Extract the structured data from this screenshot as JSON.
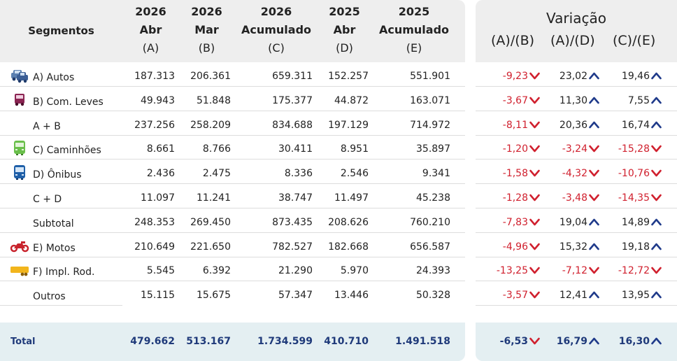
{
  "header": {
    "segmentos": "Segmentos",
    "cols": [
      {
        "l1": "2026",
        "l2": "Abr",
        "l3": "(A)"
      },
      {
        "l1": "2026",
        "l2": "Mar",
        "l3": "(B)"
      },
      {
        "l1": "2026",
        "l2": "Acumulado",
        "l3": "(C)"
      },
      {
        "l1": "2025",
        "l2": "Abr",
        "l3": "(D)"
      },
      {
        "l1": "2025",
        "l2": "Acumulado",
        "l3": "(E)"
      }
    ]
  },
  "variation": {
    "title": "Variação",
    "cols": [
      "(A)/(B)",
      "(A)/(D)",
      "(C)/(E)"
    ]
  },
  "rows": [
    {
      "label": "A) Autos",
      "icon": "car-icon",
      "v": [
        "187.313",
        "206.361",
        "659.311",
        "152.257",
        "551.901"
      ],
      "var": [
        {
          "val": "-9,23",
          "dir": "down"
        },
        {
          "val": "23,02",
          "dir": "up"
        },
        {
          "val": "19,46",
          "dir": "up"
        }
      ]
    },
    {
      "label": "B) Com. Leves",
      "icon": "van-icon",
      "v": [
        "49.943",
        "51.848",
        "175.377",
        "44.872",
        "163.071"
      ],
      "var": [
        {
          "val": "-3,67",
          "dir": "down"
        },
        {
          "val": "11,30",
          "dir": "up"
        },
        {
          "val": "7,55",
          "dir": "up"
        }
      ]
    },
    {
      "label": "A + B",
      "icon": "",
      "v": [
        "237.256",
        "258.209",
        "834.688",
        "197.129",
        "714.972"
      ],
      "var": [
        {
          "val": "-8,11",
          "dir": "down"
        },
        {
          "val": "20,36",
          "dir": "up"
        },
        {
          "val": "16,74",
          "dir": "up"
        }
      ]
    },
    {
      "label": "C) Caminhões",
      "icon": "truck-icon",
      "v": [
        "8.661",
        "8.766",
        "30.411",
        "8.951",
        "35.897"
      ],
      "var": [
        {
          "val": "-1,20",
          "dir": "down"
        },
        {
          "val": "-3,24",
          "dir": "down"
        },
        {
          "val": "-15,28",
          "dir": "down"
        }
      ]
    },
    {
      "label": "D) Ônibus",
      "icon": "bus-icon",
      "v": [
        "2.436",
        "2.475",
        "8.336",
        "2.546",
        "9.341"
      ],
      "var": [
        {
          "val": "-1,58",
          "dir": "down"
        },
        {
          "val": "-4,32",
          "dir": "down"
        },
        {
          "val": "-10,76",
          "dir": "down"
        }
      ]
    },
    {
      "label": "C + D",
      "icon": "",
      "v": [
        "11.097",
        "11.241",
        "38.747",
        "11.497",
        "45.238"
      ],
      "var": [
        {
          "val": "-1,28",
          "dir": "down"
        },
        {
          "val": "-3,48",
          "dir": "down"
        },
        {
          "val": "-14,35",
          "dir": "down"
        }
      ]
    },
    {
      "label": "Subtotal",
      "icon": "",
      "v": [
        "248.353",
        "269.450",
        "873.435",
        "208.626",
        "760.210"
      ],
      "var": [
        {
          "val": "-7,83",
          "dir": "down"
        },
        {
          "val": "19,04",
          "dir": "up"
        },
        {
          "val": "14,89",
          "dir": "up"
        }
      ]
    },
    {
      "label": "E) Motos",
      "icon": "motorcycle-icon",
      "v": [
        "210.649",
        "221.650",
        "782.527",
        "182.668",
        "656.587"
      ],
      "var": [
        {
          "val": "-4,96",
          "dir": "down"
        },
        {
          "val": "15,32",
          "dir": "up"
        },
        {
          "val": "19,18",
          "dir": "up"
        }
      ]
    },
    {
      "label": "F) Impl. Rod.",
      "icon": "trailer-icon",
      "v": [
        "5.545",
        "6.392",
        "21.290",
        "5.970",
        "24.393"
      ],
      "var": [
        {
          "val": "-13,25",
          "dir": "down"
        },
        {
          "val": "-7,12",
          "dir": "down"
        },
        {
          "val": "-12,72",
          "dir": "down"
        }
      ]
    },
    {
      "label": "Outros",
      "icon": "",
      "v": [
        "15.115",
        "15.675",
        "57.347",
        "13.446",
        "50.328"
      ],
      "var": [
        {
          "val": "-3,57",
          "dir": "down"
        },
        {
          "val": "12,41",
          "dir": "up"
        },
        {
          "val": "13,95",
          "dir": "up"
        }
      ]
    }
  ],
  "total": {
    "label": "Total",
    "v": [
      "479.662",
      "513.167",
      "1.734.599",
      "410.710",
      "1.491.518"
    ],
    "var": [
      {
        "val": "-6,53",
        "dir": "down"
      },
      {
        "val": "16,79",
        "dir": "up"
      },
      {
        "val": "16,30",
        "dir": "up"
      }
    ]
  },
  "colors": {
    "negative": "#d0202e",
    "up_arrow": "#1f3a8a",
    "down_arrow": "#d0202e",
    "total_text": "#1f3a7a",
    "header_bg": "#eeeeee",
    "footer_bg": "#e4eff2"
  }
}
